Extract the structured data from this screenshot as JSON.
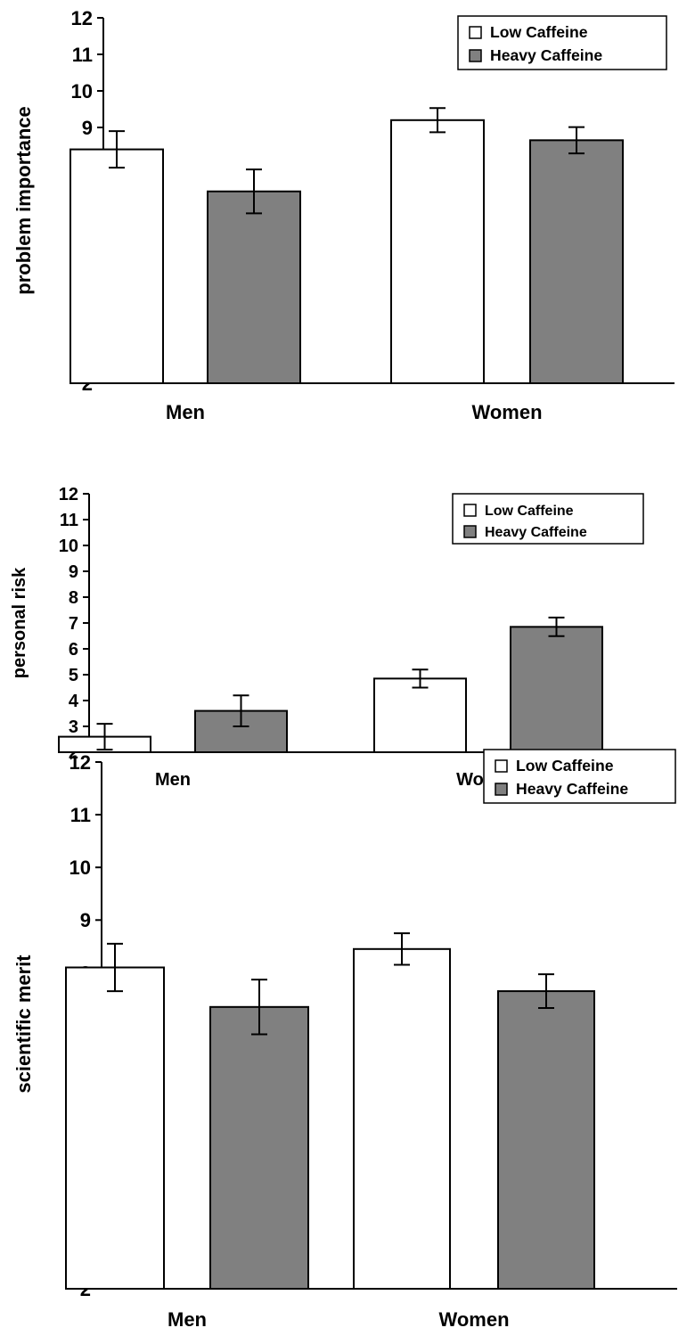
{
  "chart_data": [
    {
      "type": "bar",
      "categories": [
        "Men",
        "Women"
      ],
      "ylabel": "problem importance",
      "ylim": [
        2,
        12
      ],
      "yticks": [
        2,
        3,
        4,
        5,
        6,
        7,
        8,
        9,
        10,
        11,
        12
      ],
      "legend": "top-right",
      "series": [
        {
          "name": "Low Caffeine",
          "color": "#ffffff",
          "values": [
            8.4,
            9.2
          ],
          "error": [
            0.5,
            0.33
          ]
        },
        {
          "name": "Heavy Caffeine",
          "color": "#808080",
          "values": [
            7.25,
            8.65
          ],
          "error": [
            0.6,
            0.36
          ]
        }
      ]
    },
    {
      "type": "bar",
      "categories": [
        "Men",
        "Women"
      ],
      "ylabel": "personal risk",
      "ylim": [
        2,
        12
      ],
      "yticks": [
        2,
        3,
        4,
        5,
        6,
        7,
        8,
        9,
        10,
        11,
        12
      ],
      "legend": "top-right",
      "series": [
        {
          "name": "Low Caffeine",
          "color": "#ffffff",
          "values": [
            2.6,
            4.85
          ],
          "error": [
            0.5,
            0.35
          ]
        },
        {
          "name": "Heavy Caffeine",
          "color": "#808080",
          "values": [
            3.6,
            6.85
          ],
          "error": [
            0.6,
            0.36
          ]
        }
      ]
    },
    {
      "type": "bar",
      "categories": [
        "Men",
        "Women"
      ],
      "ylabel": "scientific merit",
      "ylim": [
        2,
        12
      ],
      "yticks": [
        2,
        3,
        4,
        5,
        6,
        7,
        8,
        9,
        10,
        11,
        12
      ],
      "legend": "top-right",
      "series": [
        {
          "name": "Low Caffeine",
          "color": "#ffffff",
          "values": [
            8.1,
            8.45
          ],
          "error": [
            0.45,
            0.3
          ]
        },
        {
          "name": "Heavy Caffeine",
          "color": "#808080",
          "values": [
            7.35,
            7.65
          ],
          "error": [
            0.52,
            0.32
          ]
        }
      ]
    }
  ]
}
